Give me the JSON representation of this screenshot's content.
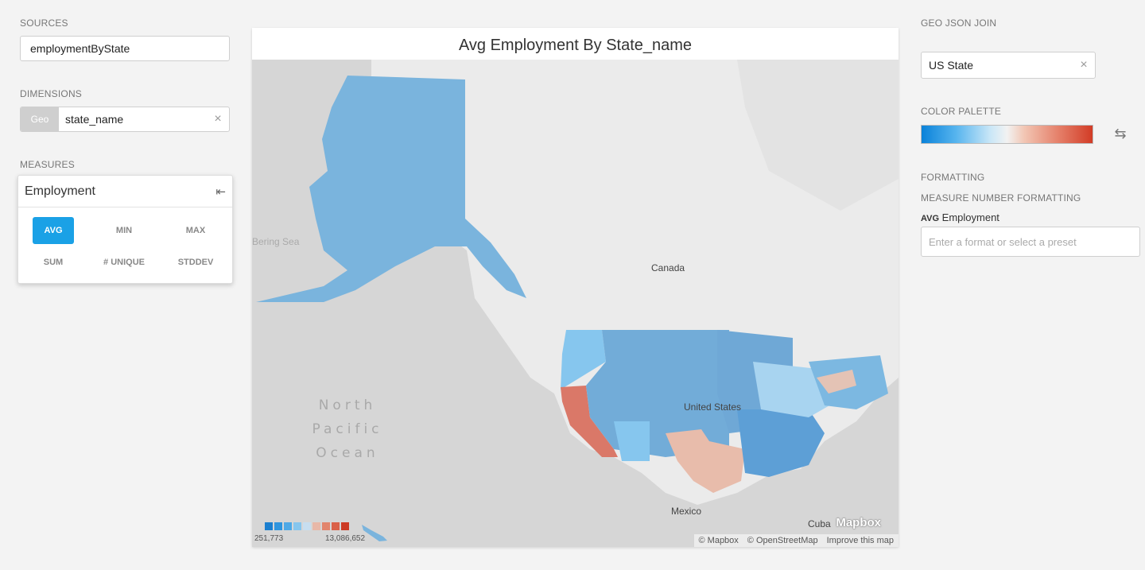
{
  "left": {
    "sources_label": "SOURCES",
    "source_value": "employmentByState",
    "dimensions_label": "DIMENSIONS",
    "dimension_tag": "Geo",
    "dimension_value": "state_name",
    "measures_label": "MEASURES",
    "measure": {
      "title": "Employment",
      "aggregations": [
        {
          "label": "AVG",
          "active": true
        },
        {
          "label": "MIN",
          "active": false
        },
        {
          "label": "MAX",
          "active": false
        },
        {
          "label": "SUM",
          "active": false
        },
        {
          "label": "# UNIQUE",
          "active": false
        },
        {
          "label": "STDDEV",
          "active": false
        }
      ]
    }
  },
  "chart": {
    "title": "Avg Employment By State_name",
    "legend_min": "251,773",
    "legend_max": "13,086,652",
    "legend_colors": [
      "#1b7fcf",
      "#2f95de",
      "#4fa9e6",
      "#86c6ee",
      "#c7def0",
      "#e8b8a8",
      "#e2856d",
      "#da6149",
      "#cc3a24"
    ],
    "labels": {
      "canada": "Canada",
      "united_states": "United States",
      "mexico": "Mexico",
      "cuba": "Cuba",
      "bering_sea": "Bering Sea",
      "ocean_line1": "North",
      "ocean_line2": "Pacific",
      "ocean_line3": "Ocean"
    },
    "mapbox_logo": "Mapbox",
    "attribution": [
      "© Mapbox",
      "© OpenStreetMap",
      "Improve this map"
    ]
  },
  "right": {
    "geo_join_label": "GEO JSON JOIN",
    "geo_join_value": "US State",
    "palette_label": "COLOR PALETTE",
    "formatting_label": "FORMATTING",
    "measure_formatting_label": "MEASURE NUMBER FORMATTING",
    "format_agg": "AVG",
    "format_measure": "Employment",
    "format_placeholder": "Enter a format or select a preset"
  },
  "icons": {
    "clear": "×",
    "collapse": "⇤",
    "swap": "⇆"
  }
}
